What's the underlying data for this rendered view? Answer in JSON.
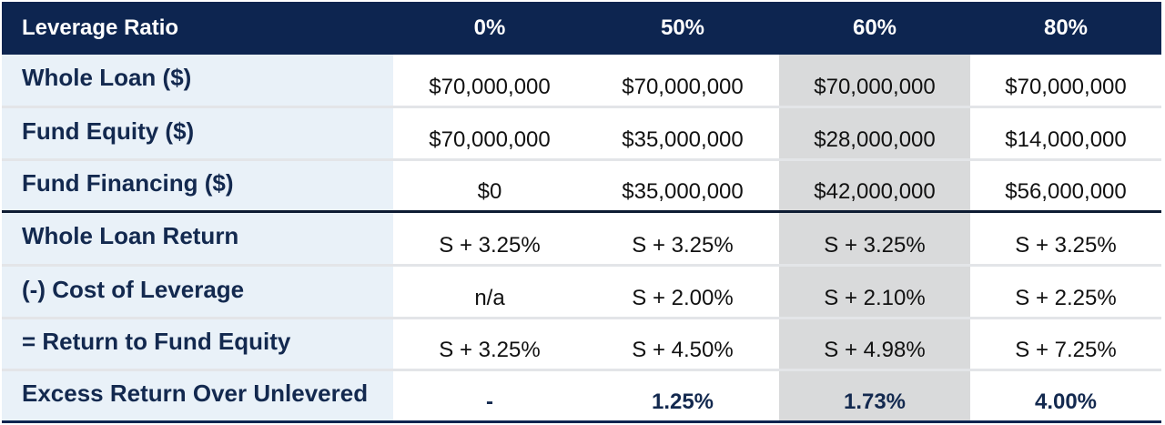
{
  "header": {
    "label": "Leverage Ratio",
    "columns": [
      "0%",
      "50%",
      "60%",
      "80%"
    ]
  },
  "rows": [
    {
      "label": "Whole Loan ($)",
      "values": [
        "$70,000,000",
        "$70,000,000",
        "$70,000,000",
        "$70,000,000"
      ]
    },
    {
      "label": "Fund Equity ($)",
      "values": [
        "$70,000,000",
        "$35,000,000",
        "$28,000,000",
        "$14,000,000"
      ]
    },
    {
      "label": "Fund Financing ($)",
      "values": [
        "$0",
        "$35,000,000",
        "$42,000,000",
        "$56,000,000"
      ]
    },
    {
      "label": "Whole Loan Return",
      "values": [
        "S + 3.25%",
        "S + 3.25%",
        "S + 3.25%",
        "S + 3.25%"
      ]
    },
    {
      "label": "(-) Cost of Leverage",
      "values": [
        "n/a",
        "S + 2.00%",
        "S + 2.10%",
        "S + 2.25%"
      ]
    },
    {
      "label": "= Return to Fund Equity",
      "values": [
        "S + 3.25%",
        "S + 4.50%",
        "S + 4.98%",
        "S + 7.25%"
      ]
    },
    {
      "label": "Excess Return Over Unlevered",
      "values": [
        "-",
        "1.25%",
        "1.73%",
        "4.00%"
      ]
    }
  ],
  "colors": {
    "header_bg": "#0d2550",
    "label_bg": "#e9f1f8",
    "highlight_column_bg": "#d9dadb"
  }
}
